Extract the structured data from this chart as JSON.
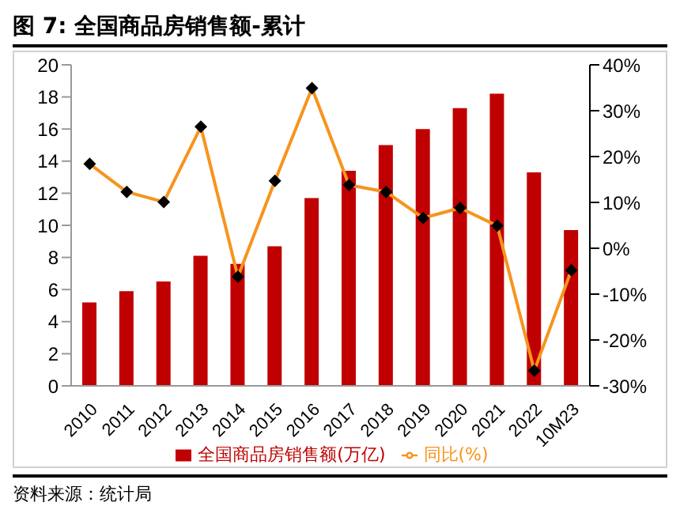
{
  "chart_data": {
    "type": "bar",
    "title": "图 7: 全国商品房销售额-累计",
    "categories": [
      "2010",
      "2011",
      "2012",
      "2013",
      "2014",
      "2015",
      "2016",
      "2017",
      "2018",
      "2019",
      "2020",
      "2021",
      "2022",
      "10M23"
    ],
    "series": [
      {
        "name": "全国商品房销售额(万亿)",
        "color": "#c00000",
        "values": [
          5.2,
          5.9,
          6.5,
          8.1,
          7.6,
          8.7,
          11.7,
          13.4,
          15.0,
          16.0,
          17.3,
          18.2,
          13.3,
          9.7
        ]
      },
      {
        "name": "同比(%)",
        "type": "line",
        "axis": "y2",
        "color": "#f7941d",
        "marker": "diamond",
        "values": [
          18.4,
          12.3,
          10.1,
          26.5,
          -6.2,
          14.7,
          34.9,
          13.8,
          12.3,
          6.6,
          8.8,
          4.9,
          -26.7,
          -4.8
        ]
      }
    ],
    "ylim": [
      0,
      20
    ],
    "yticks": [
      0,
      2,
      4,
      6,
      8,
      10,
      12,
      14,
      16,
      18,
      20
    ],
    "y2lim": [
      -30,
      40
    ],
    "y2ticks": [
      {
        "value": -30,
        "label": "-30%"
      },
      {
        "value": -20,
        "label": "-20%"
      },
      {
        "value": -10,
        "label": "-10%"
      },
      {
        "value": 0,
        "label": "0%"
      },
      {
        "value": 10,
        "label": "10%"
      },
      {
        "value": 20,
        "label": "20%"
      },
      {
        "value": 30,
        "label": "30%"
      },
      {
        "value": 40,
        "label": "40%"
      }
    ],
    "legend": "bottom",
    "annotations": [
      "资料来源：统计局"
    ]
  }
}
